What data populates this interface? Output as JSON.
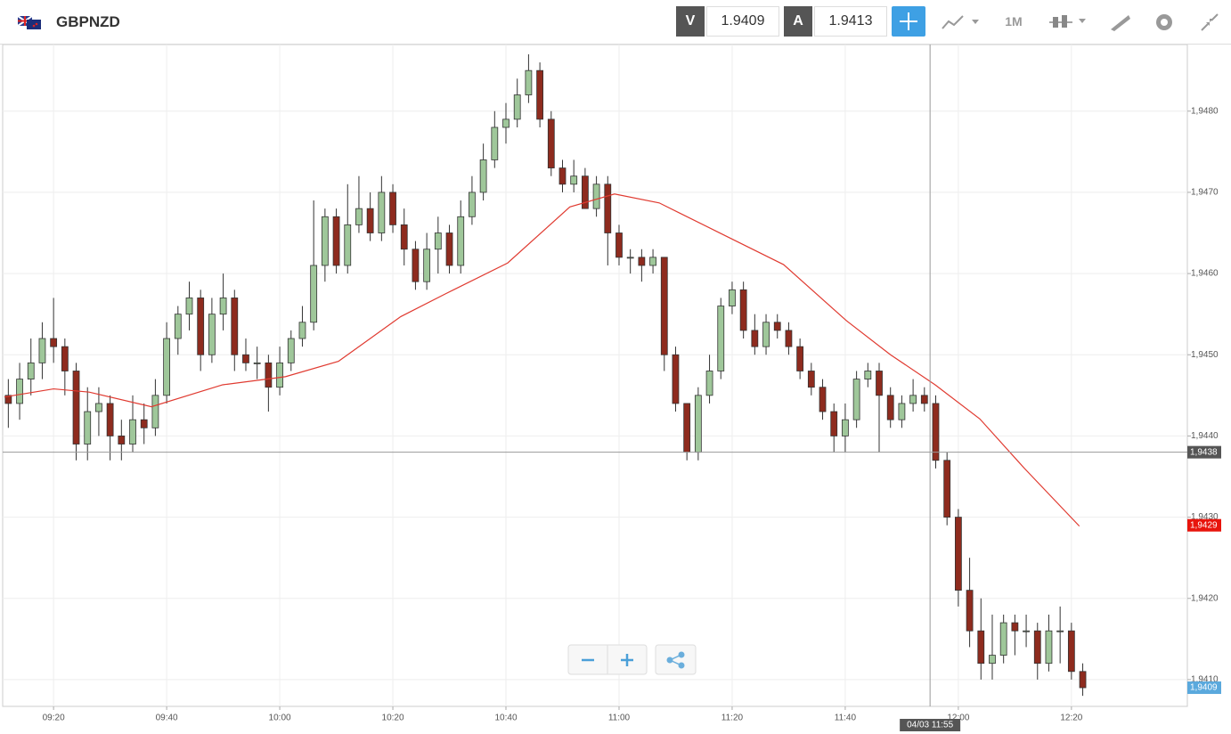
{
  "header": {
    "symbol": "GBPNZD",
    "bid_label": "V",
    "bid": "1.9409",
    "ask_label": "A",
    "ask": "1.9413",
    "timeframe": "1M"
  },
  "chart_data": {
    "type": "candlestick",
    "x": [
      552,
      554,
      556,
      558,
      560,
      562,
      564,
      566,
      568,
      570,
      572,
      574,
      576,
      578,
      580,
      582,
      584,
      586,
      588,
      590,
      592,
      594,
      596,
      598,
      600,
      602,
      604,
      606,
      608,
      610,
      612,
      614,
      616,
      618,
      620,
      622,
      624,
      626,
      628,
      630,
      632,
      634,
      636,
      638,
      640,
      642,
      644,
      646,
      648,
      650,
      652,
      654,
      656,
      658,
      660,
      662,
      664,
      666,
      668,
      670,
      672,
      674,
      676,
      678,
      680,
      682,
      684,
      686,
      688,
      690,
      692,
      694,
      696,
      698,
      700,
      702,
      704,
      706,
      708,
      710,
      712,
      714,
      716,
      718,
      720,
      722,
      724,
      726,
      728,
      730,
      732,
      734,
      736,
      738,
      740,
      742
    ],
    "open": [
      1.9445,
      1.9444,
      1.9447,
      1.9449,
      1.9452,
      1.9451,
      1.9448,
      1.9439,
      1.9443,
      1.9444,
      1.944,
      1.9439,
      1.9442,
      1.9441,
      1.9445,
      1.9452,
      1.9455,
      1.9457,
      1.945,
      1.9455,
      1.9457,
      1.945,
      1.9449,
      1.9449,
      1.9446,
      1.9449,
      1.9452,
      1.9454,
      1.9461,
      1.9467,
      1.9461,
      1.9466,
      1.9468,
      1.9465,
      1.947,
      1.9466,
      1.9463,
      1.9459,
      1.9463,
      1.9465,
      1.9461,
      1.9467,
      1.947,
      1.9474,
      1.9478,
      1.9479,
      1.9482,
      1.9485,
      1.9479,
      1.9473,
      1.9471,
      1.9472,
      1.9468,
      1.9471,
      1.9465,
      1.9462,
      1.9462,
      1.9461,
      1.9462,
      1.945,
      1.9444,
      1.9438,
      1.9445,
      1.9448,
      1.9456,
      1.9458,
      1.9453,
      1.9451,
      1.9454,
      1.9453,
      1.9451,
      1.9448,
      1.9446,
      1.9443,
      1.944,
      1.9442,
      1.9447,
      1.9448,
      1.9445,
      1.9442,
      1.9444,
      1.9445,
      1.9444,
      1.9437,
      1.943,
      1.9421,
      1.9416,
      1.9412,
      1.9413,
      1.9417,
      1.9416,
      1.9416,
      1.9412,
      1.9416,
      1.9416,
      1.9411
    ],
    "high": [
      1.9447,
      1.9449,
      1.9452,
      1.9454,
      1.9457,
      1.9452,
      1.9449,
      1.9446,
      1.9446,
      1.9445,
      1.9442,
      1.9445,
      1.9444,
      1.9447,
      1.9454,
      1.9456,
      1.9459,
      1.9458,
      1.9457,
      1.946,
      1.9458,
      1.9452,
      1.9451,
      1.945,
      1.9451,
      1.9453,
      1.9456,
      1.9469,
      1.9468,
      1.9468,
      1.9471,
      1.9472,
      1.947,
      1.9472,
      1.9471,
      1.9468,
      1.9464,
      1.9465,
      1.9467,
      1.9466,
      1.9469,
      1.9472,
      1.9476,
      1.948,
      1.9481,
      1.9484,
      1.9487,
      1.9486,
      1.948,
      1.9474,
      1.9474,
      1.9473,
      1.9472,
      1.9472,
      1.9466,
      1.9463,
      1.9463,
      1.9463,
      1.9462,
      1.9451,
      1.9444,
      1.9446,
      1.945,
      1.9457,
      1.9459,
      1.9459,
      1.9455,
      1.9455,
      1.9455,
      1.9454,
      1.9452,
      1.9449,
      1.9447,
      1.9444,
      1.9444,
      1.9448,
      1.9449,
      1.9449,
      1.9446,
      1.9445,
      1.9447,
      1.9446,
      1.9445,
      1.9438,
      1.9431,
      1.9425,
      1.942,
      1.9418,
      1.9418,
      1.9418,
      1.9418,
      1.9417,
      1.9418,
      1.9419,
      1.9417,
      1.9412
    ],
    "low": [
      1.9441,
      1.9442,
      1.9445,
      1.9447,
      1.9449,
      1.9445,
      1.9437,
      1.9437,
      1.944,
      1.9437,
      1.9437,
      1.9438,
      1.9439,
      1.944,
      1.9444,
      1.945,
      1.9453,
      1.9448,
      1.9449,
      1.9453,
      1.9448,
      1.9448,
      1.9447,
      1.9443,
      1.9445,
      1.9448,
      1.9451,
      1.9453,
      1.9459,
      1.946,
      1.946,
      1.9465,
      1.9464,
      1.9464,
      1.9465,
      1.9461,
      1.9458,
      1.9458,
      1.946,
      1.946,
      1.946,
      1.9466,
      1.9469,
      1.9473,
      1.9476,
      1.9478,
      1.9481,
      1.9478,
      1.9472,
      1.947,
      1.947,
      1.9468,
      1.9467,
      1.9461,
      1.9461,
      1.946,
      1.9459,
      1.946,
      1.9448,
      1.9443,
      1.9437,
      1.9437,
      1.9444,
      1.9447,
      1.9455,
      1.9452,
      1.945,
      1.945,
      1.9452,
      1.945,
      1.9447,
      1.9445,
      1.9442,
      1.9438,
      1.9438,
      1.9441,
      1.9446,
      1.9438,
      1.9441,
      1.9441,
      1.9443,
      1.9443,
      1.9436,
      1.9429,
      1.9419,
      1.9414,
      1.941,
      1.941,
      1.9412,
      1.9413,
      1.9414,
      1.941,
      1.9411,
      1.9412,
      1.941,
      1.9408
    ],
    "close": [
      1.9444,
      1.9447,
      1.9449,
      1.9452,
      1.9451,
      1.9448,
      1.9439,
      1.9443,
      1.9444,
      1.944,
      1.9439,
      1.9442,
      1.9441,
      1.9445,
      1.9452,
      1.9455,
      1.9457,
      1.945,
      1.9455,
      1.9457,
      1.945,
      1.9449,
      1.9449,
      1.9446,
      1.9449,
      1.9452,
      1.9454,
      1.9461,
      1.9467,
      1.9461,
      1.9466,
      1.9468,
      1.9465,
      1.947,
      1.9466,
      1.9463,
      1.9459,
      1.9463,
      1.9465,
      1.9461,
      1.9467,
      1.947,
      1.9474,
      1.9478,
      1.9479,
      1.9482,
      1.9485,
      1.9479,
      1.9473,
      1.9471,
      1.9472,
      1.9468,
      1.9471,
      1.9465,
      1.9462,
      1.9462,
      1.9461,
      1.9462,
      1.945,
      1.9444,
      1.9438,
      1.9445,
      1.9448,
      1.9456,
      1.9458,
      1.9453,
      1.9451,
      1.9454,
      1.9453,
      1.9451,
      1.9448,
      1.9446,
      1.9443,
      1.944,
      1.9442,
      1.9447,
      1.9448,
      1.9445,
      1.9442,
      1.9444,
      1.9445,
      1.9444,
      1.9437,
      1.943,
      1.9421,
      1.9416,
      1.9412,
      1.9413,
      1.9417,
      1.9416,
      1.9416,
      1.9412,
      1.9416,
      1.9416,
      1.9411,
      1.9409
    ],
    "up_color": "#9fc79a",
    "down_color": "#8e2b1e",
    "overlay_line": {
      "color": "#e03a30",
      "x": [
        551.3,
        560,
        566.3,
        577.3,
        589.9,
        601,
        610.4,
        621.4,
        629.3,
        640.3,
        651.3,
        659.2,
        667.1,
        678.1,
        689.1,
        700.2,
        708,
        715.9,
        723.8,
        731.7,
        741.4
      ],
      "values": [
        1.94448,
        1.94458,
        1.94454,
        1.94436,
        1.94463,
        1.94473,
        1.94492,
        1.94547,
        1.94575,
        1.94613,
        1.94682,
        1.94698,
        1.94687,
        1.94649,
        1.94611,
        1.94542,
        1.945,
        1.94463,
        1.94421,
        1.9436,
        1.94289
      ]
    },
    "xlim": [
      551,
      760.5
    ],
    "ylim": [
      1.94067,
      1.94882
    ],
    "xticks": [
      {
        "value": 560,
        "label": "09:20"
      },
      {
        "value": 580,
        "label": "09:40"
      },
      {
        "value": 600,
        "label": "10:00"
      },
      {
        "value": 620,
        "label": "10:20"
      },
      {
        "value": 640,
        "label": "10:40"
      },
      {
        "value": 660,
        "label": "11:00"
      },
      {
        "value": 680,
        "label": "11:20"
      },
      {
        "value": 700,
        "label": "11:40"
      },
      {
        "value": 720,
        "label": "12:00"
      },
      {
        "value": 740,
        "label": "12:20"
      }
    ],
    "yticks": [
      {
        "value": 1.941,
        "label": "1,9410"
      },
      {
        "value": 1.942,
        "label": "1,9420"
      },
      {
        "value": 1.943,
        "label": "1,9430"
      },
      {
        "value": 1.944,
        "label": "1,9440"
      },
      {
        "value": 1.945,
        "label": "1,9450"
      },
      {
        "value": 1.946,
        "label": "1,9460"
      },
      {
        "value": 1.947,
        "label": "1,9470"
      },
      {
        "value": 1.948,
        "label": "1,9480"
      }
    ],
    "grid": true,
    "crosshair": {
      "x": {
        "value": 715,
        "label": "04/03 11:55"
      },
      "y": {
        "value": 1.9438,
        "label": "1,9438"
      }
    },
    "markers": [
      {
        "value": 1.9429,
        "label": "1,9429",
        "color": "#e8140c"
      },
      {
        "value": 1.9409,
        "label": "1,9409",
        "color": "#5aa9dd"
      }
    ]
  }
}
